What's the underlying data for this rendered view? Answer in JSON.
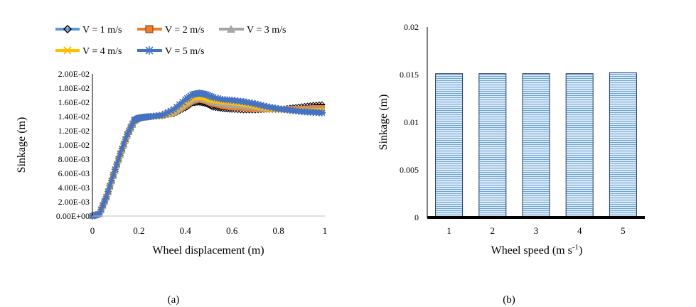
{
  "chart_data": [
    {
      "type": "line",
      "panel_label": "(a)",
      "xlabel": "Wheel displacement (m)",
      "ylabel": "Sinkage (m)",
      "xlim": [
        0,
        1
      ],
      "ylim": [
        0,
        0.02
      ],
      "x_ticks": [
        "0",
        "0.2",
        "0.4",
        "0.6",
        "0.8",
        "1"
      ],
      "y_ticks": [
        "0.00E+00",
        "2.00E-03",
        "4.00E-03",
        "6.00E-03",
        "8.00E-03",
        "1.00E-02",
        "1.20E-02",
        "1.40E-02",
        "1.60E-02",
        "1.80E-02",
        "2.00E-02"
      ],
      "legend": [
        "V = 1 m/s",
        "V = 2 m/s",
        "V = 3 m/s",
        "V = 4 m/s",
        "V = 5 m/s"
      ],
      "legend_placement": "top",
      "series": [
        {
          "name": "V = 1 m/s",
          "color": "#000000",
          "marker": "diamond",
          "legend_color": "#5b9bd5",
          "x": [
            0,
            0.03,
            0.06,
            0.09,
            0.12,
            0.15,
            0.18,
            0.2,
            0.22,
            0.25,
            0.3,
            0.35,
            0.4,
            0.43,
            0.46,
            0.49,
            0.52,
            0.56,
            0.6,
            0.65,
            0.7,
            0.75,
            0.8,
            0.85,
            0.9,
            0.95,
            1.0
          ],
          "y": [
            0,
            0.0003,
            0.0025,
            0.0055,
            0.0085,
            0.0112,
            0.0132,
            0.0138,
            0.0139,
            0.014,
            0.0141,
            0.0144,
            0.0152,
            0.0159,
            0.016,
            0.0158,
            0.0153,
            0.0151,
            0.015,
            0.0149,
            0.0149,
            0.015,
            0.015,
            0.0152,
            0.0154,
            0.0156,
            0.0157
          ]
        },
        {
          "name": "V = 2 m/s",
          "color": "#ed7d31",
          "marker": "square",
          "x": [
            0,
            0.03,
            0.06,
            0.09,
            0.12,
            0.15,
            0.18,
            0.2,
            0.22,
            0.25,
            0.3,
            0.35,
            0.4,
            0.43,
            0.46,
            0.49,
            0.52,
            0.56,
            0.6,
            0.65,
            0.7,
            0.75,
            0.8,
            0.85,
            0.9,
            0.95,
            1.0
          ],
          "y": [
            0,
            0.0003,
            0.0026,
            0.0056,
            0.0086,
            0.0113,
            0.0133,
            0.0138,
            0.0139,
            0.014,
            0.0141,
            0.0145,
            0.0155,
            0.0162,
            0.0164,
            0.0162,
            0.0158,
            0.0155,
            0.0153,
            0.0152,
            0.015,
            0.015,
            0.015,
            0.0151,
            0.0151,
            0.0152,
            0.0152
          ]
        },
        {
          "name": "V = 3 m/s",
          "color": "#a5a5a5",
          "marker": "triangle",
          "x": [
            0,
            0.03,
            0.06,
            0.09,
            0.12,
            0.15,
            0.18,
            0.2,
            0.22,
            0.25,
            0.3,
            0.35,
            0.4,
            0.43,
            0.46,
            0.49,
            0.52,
            0.56,
            0.6,
            0.65,
            0.7,
            0.75,
            0.8,
            0.85,
            0.9,
            0.95,
            1.0
          ],
          "y": [
            0,
            0.0003,
            0.0026,
            0.0056,
            0.0086,
            0.0113,
            0.0133,
            0.0138,
            0.0139,
            0.014,
            0.0141,
            0.0146,
            0.0157,
            0.0164,
            0.0166,
            0.0164,
            0.016,
            0.0158,
            0.0156,
            0.0155,
            0.0153,
            0.0151,
            0.015,
            0.015,
            0.015,
            0.015,
            0.015
          ]
        },
        {
          "name": "V = 4 m/s",
          "color": "#ffc000",
          "marker": "x",
          "x": [
            0,
            0.03,
            0.06,
            0.09,
            0.12,
            0.15,
            0.18,
            0.2,
            0.22,
            0.25,
            0.3,
            0.35,
            0.4,
            0.43,
            0.46,
            0.49,
            0.52,
            0.56,
            0.6,
            0.65,
            0.7,
            0.75,
            0.8,
            0.85,
            0.9,
            0.95,
            1.0
          ],
          "y": [
            0,
            0.0003,
            0.0026,
            0.0057,
            0.0087,
            0.0114,
            0.0134,
            0.0138,
            0.0139,
            0.014,
            0.0141,
            0.0148,
            0.016,
            0.0167,
            0.0168,
            0.0166,
            0.0163,
            0.0161,
            0.016,
            0.0158,
            0.0155,
            0.0152,
            0.015,
            0.0149,
            0.0148,
            0.0147,
            0.0148
          ]
        },
        {
          "name": "V = 5 m/s",
          "color": "#4472c4",
          "marker": "star",
          "x": [
            0,
            0.03,
            0.06,
            0.09,
            0.12,
            0.15,
            0.18,
            0.2,
            0.22,
            0.25,
            0.3,
            0.35,
            0.4,
            0.43,
            0.46,
            0.49,
            0.52,
            0.56,
            0.6,
            0.65,
            0.7,
            0.75,
            0.8,
            0.85,
            0.9,
            0.95,
            1.0
          ],
          "y": [
            0,
            0.0003,
            0.0027,
            0.0058,
            0.0088,
            0.0115,
            0.0135,
            0.0138,
            0.0139,
            0.014,
            0.0142,
            0.015,
            0.0164,
            0.0171,
            0.0173,
            0.0171,
            0.0167,
            0.0164,
            0.0163,
            0.0161,
            0.0158,
            0.0154,
            0.0151,
            0.0149,
            0.0147,
            0.0146,
            0.0145
          ]
        }
      ]
    },
    {
      "type": "bar",
      "panel_label": "(b)",
      "xlabel_main": "Wheel speed (m s",
      "xlabel_sup": "-1",
      "xlabel_tail": ")",
      "ylabel": "Sinkage (m)",
      "categories": [
        "1",
        "2",
        "3",
        "4",
        "5"
      ],
      "values": [
        0.0151,
        0.0151,
        0.0151,
        0.0151,
        0.0152
      ],
      "ylim": [
        0,
        0.02
      ],
      "y_ticks": [
        "0",
        "0.005",
        "0.01",
        "0.015",
        "0.02"
      ],
      "y_tick_values": [
        0,
        0.005,
        0.01,
        0.015,
        0.02
      ],
      "bar_fill": "#bdd7ee",
      "bar_stripe": "#5b9bd5",
      "bar_edge": "#1f3864"
    }
  ]
}
